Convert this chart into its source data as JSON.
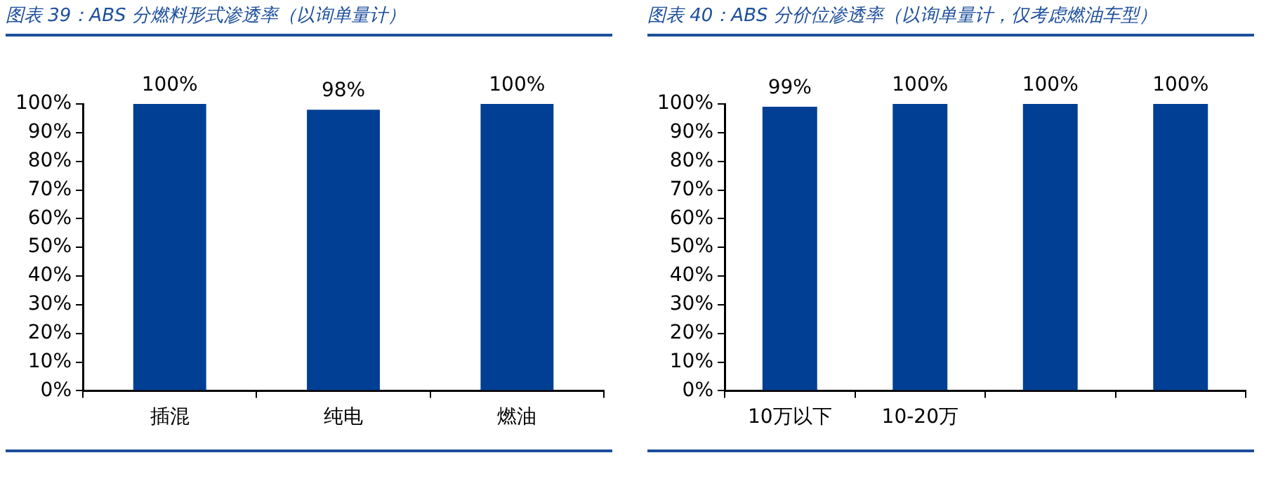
{
  "chart_data": [
    {
      "type": "bar",
      "title": "图表 39：ABS 分燃料形式渗透率（以询单量计）",
      "categories": [
        "插混",
        "纯电",
        "燃油"
      ],
      "values": [
        100,
        98,
        100
      ],
      "value_labels": [
        "100%",
        "98%",
        "100%"
      ],
      "color": "#003f93",
      "ylim": [
        0,
        100
      ],
      "yticks": [
        {
          "value": 0,
          "label": "0%"
        },
        {
          "value": 10,
          "label": "10%"
        },
        {
          "value": 20,
          "label": "20%"
        },
        {
          "value": 30,
          "label": "30%"
        },
        {
          "value": 40,
          "label": "40%"
        },
        {
          "value": 50,
          "label": "50%"
        },
        {
          "value": 60,
          "label": "60%"
        },
        {
          "value": 70,
          "label": "70%"
        },
        {
          "value": 80,
          "label": "80%"
        },
        {
          "value": 90,
          "label": "90%"
        },
        {
          "value": 100,
          "label": "100%"
        }
      ],
      "grid": false,
      "legend": false
    },
    {
      "type": "bar",
      "title": "图表 40：ABS 分价位渗透率（以询单量计，仅考虑燃油车型）",
      "categories": [
        "10万以下",
        "10-20万",
        null,
        null
      ],
      "values": [
        99,
        100,
        100,
        100
      ],
      "value_labels": [
        "99%",
        "100%",
        "100%",
        "100%"
      ],
      "color": "#003f93",
      "ylim": [
        0,
        100
      ],
      "yticks": [
        {
          "value": 0,
          "label": "0%"
        },
        {
          "value": 10,
          "label": "10%"
        },
        {
          "value": 20,
          "label": "20%"
        },
        {
          "value": 30,
          "label": "30%"
        },
        {
          "value": 40,
          "label": "40%"
        },
        {
          "value": 50,
          "label": "50%"
        },
        {
          "value": 60,
          "label": "60%"
        },
        {
          "value": 70,
          "label": "70%"
        },
        {
          "value": 80,
          "label": "80%"
        },
        {
          "value": 90,
          "label": "90%"
        },
        {
          "value": 100,
          "label": "100%"
        }
      ],
      "grid": false,
      "legend": false
    }
  ]
}
